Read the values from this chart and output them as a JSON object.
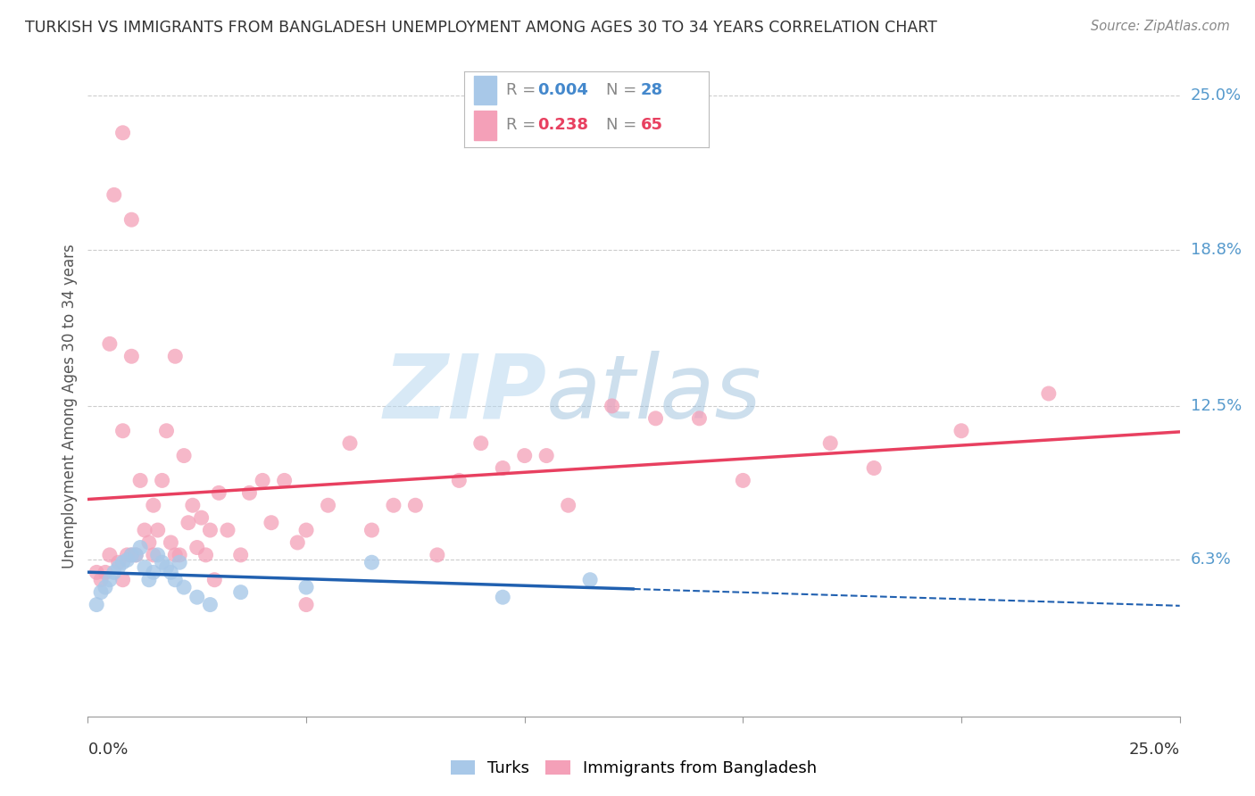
{
  "title": "TURKISH VS IMMIGRANTS FROM BANGLADESH UNEMPLOYMENT AMONG AGES 30 TO 34 YEARS CORRELATION CHART",
  "source": "Source: ZipAtlas.com",
  "ylabel": "Unemployment Among Ages 30 to 34 years",
  "y_ticks": [
    6.3,
    12.5,
    18.8,
    25.0
  ],
  "y_tick_labels": [
    "6.3%",
    "12.5%",
    "18.8%",
    "25.0%"
  ],
  "xlim": [
    0.0,
    25.0
  ],
  "ylim": [
    0.0,
    25.0
  ],
  "legend1_r": "0.004",
  "legend1_n": "28",
  "legend2_r": "0.238",
  "legend2_n": "65",
  "color_turks": "#a8c8e8",
  "color_bangladesh": "#f4a0b8",
  "color_line_turks": "#2060b0",
  "color_line_bangladesh": "#e8406080",
  "watermark_zip": "ZIP",
  "watermark_atlas": "atlas",
  "turks_x": [
    0.2,
    0.3,
    0.4,
    0.5,
    0.6,
    0.7,
    0.8,
    0.9,
    1.0,
    1.1,
    1.2,
    1.3,
    1.4,
    1.5,
    1.6,
    1.7,
    1.8,
    1.9,
    2.0,
    2.1,
    2.2,
    2.5,
    2.8,
    3.5,
    5.0,
    6.5,
    9.5,
    11.5
  ],
  "turks_y": [
    4.5,
    5.0,
    5.2,
    5.5,
    5.8,
    6.0,
    6.2,
    6.3,
    6.5,
    6.5,
    6.8,
    6.0,
    5.5,
    5.8,
    6.5,
    6.2,
    6.0,
    5.8,
    5.5,
    6.2,
    5.2,
    4.8,
    4.5,
    5.0,
    5.2,
    6.2,
    4.8,
    5.5
  ],
  "bangladesh_x": [
    0.2,
    0.3,
    0.4,
    0.5,
    0.6,
    0.7,
    0.8,
    0.8,
    0.9,
    1.0,
    1.0,
    1.1,
    1.2,
    1.3,
    1.4,
    1.5,
    1.5,
    1.6,
    1.7,
    1.8,
    1.9,
    2.0,
    2.1,
    2.2,
    2.3,
    2.4,
    2.5,
    2.6,
    2.7,
    2.8,
    2.9,
    3.0,
    3.2,
    3.5,
    3.7,
    4.0,
    4.2,
    4.5,
    4.8,
    5.0,
    5.5,
    6.0,
    6.5,
    7.0,
    7.5,
    8.0,
    8.5,
    9.0,
    9.5,
    10.0,
    10.5,
    11.0,
    12.0,
    13.0,
    14.0,
    15.0,
    17.0,
    18.0,
    20.0,
    22.0,
    0.5,
    0.8,
    1.0,
    2.0,
    5.0
  ],
  "bangladesh_y": [
    5.8,
    5.5,
    5.8,
    6.5,
    21.0,
    6.2,
    23.5,
    5.5,
    6.5,
    6.5,
    20.0,
    6.5,
    9.5,
    7.5,
    7.0,
    8.5,
    6.5,
    7.5,
    9.5,
    11.5,
    7.0,
    6.5,
    6.5,
    10.5,
    7.8,
    8.5,
    6.8,
    8.0,
    6.5,
    7.5,
    5.5,
    9.0,
    7.5,
    6.5,
    9.0,
    9.5,
    7.8,
    9.5,
    7.0,
    7.5,
    8.5,
    11.0,
    7.5,
    8.5,
    8.5,
    6.5,
    9.5,
    11.0,
    10.0,
    10.5,
    10.5,
    8.5,
    12.5,
    12.0,
    12.0,
    9.5,
    11.0,
    10.0,
    11.5,
    13.0,
    15.0,
    11.5,
    14.5,
    14.5,
    4.5
  ]
}
